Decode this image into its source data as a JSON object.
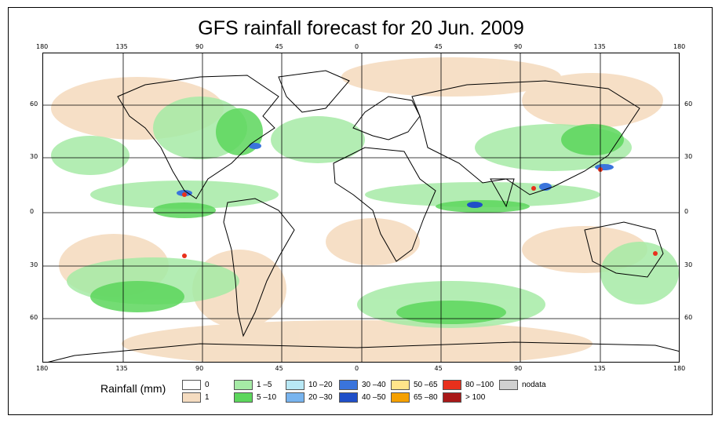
{
  "title": "GFS rainfall forecast for 20 Jun. 2009",
  "axes": {
    "lon_labels": [
      "180",
      "135",
      "90",
      "45",
      "0",
      "45",
      "90",
      "135",
      "180"
    ],
    "lat_labels": [
      "60",
      "30",
      "0",
      "30",
      "60"
    ]
  },
  "legend": {
    "title": "Rainfall (mm)",
    "items": [
      {
        "label": "0",
        "color": "#ffffff"
      },
      {
        "label": "1",
        "color": "#f5dcc0"
      },
      {
        "label": "1 –5",
        "color": "#a6eba6"
      },
      {
        "label": "5 –10",
        "color": "#5cd65c"
      },
      {
        "label": "10 –20",
        "color": "#b8e8f5"
      },
      {
        "label": "20 –30",
        "color": "#78b4ee"
      },
      {
        "label": "30 –40",
        "color": "#3a74dc"
      },
      {
        "label": "40 –50",
        "color": "#1f4fc8"
      },
      {
        "label": "50 –65",
        "color": "#ffe58a"
      },
      {
        "label": "65 –80",
        "color": "#f5a000"
      },
      {
        "label": "80 –100",
        "color": "#e8301c"
      },
      {
        "label": "> 100",
        "color": "#a81818"
      },
      {
        "label": "nodata",
        "color": "#d0d0d0"
      }
    ]
  }
}
